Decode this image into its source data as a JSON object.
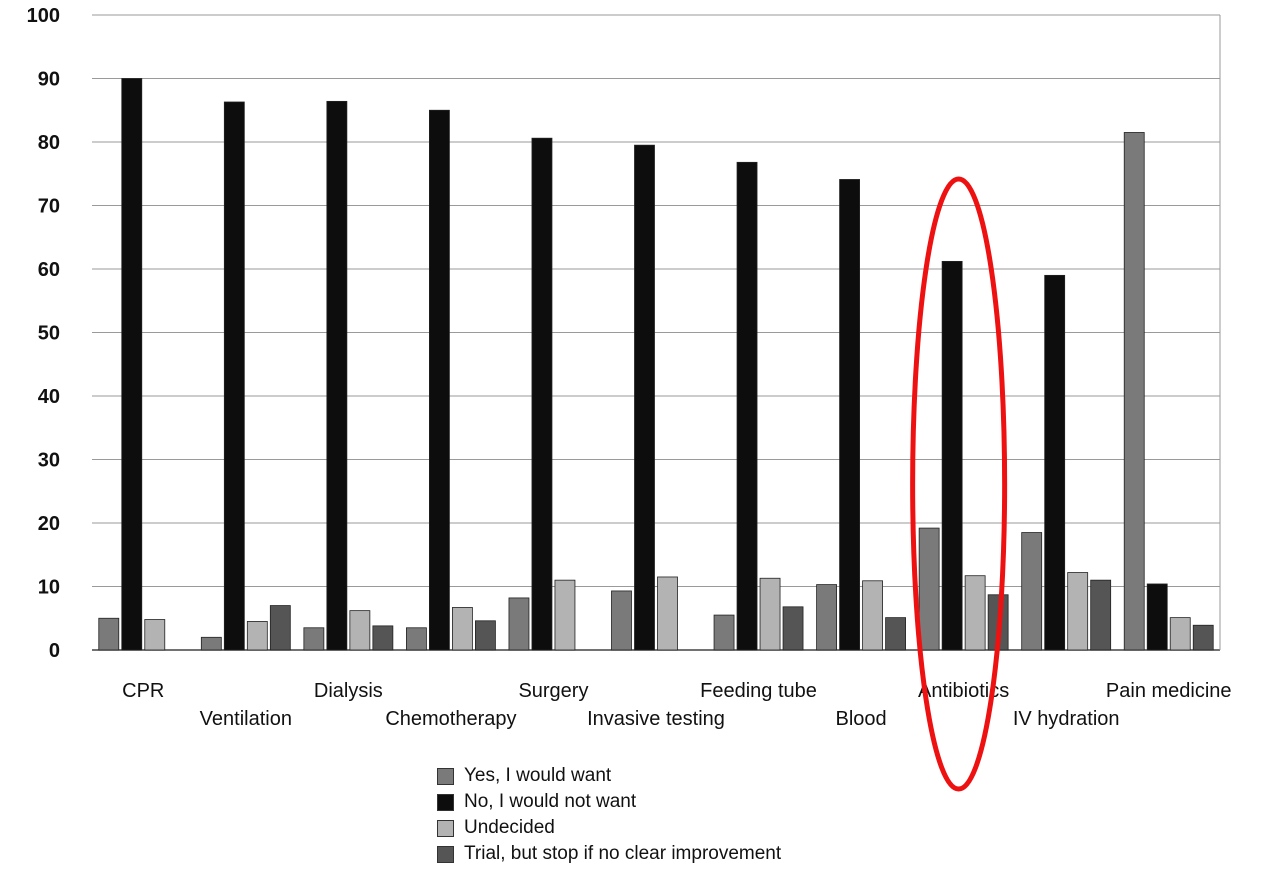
{
  "chart_data": {
    "type": "bar",
    "title": "",
    "xlabel": "",
    "ylabel": "",
    "ylim": [
      0,
      100
    ],
    "yticks": [
      "0",
      "10",
      "20",
      "30",
      "40",
      "50",
      "60",
      "70",
      "80",
      "90",
      "100"
    ],
    "grid": true,
    "legend_position": "bottom",
    "categories": [
      "CPR",
      "Ventilation",
      "Dialysis",
      "Chemotherapy",
      "Surgery",
      "Invasive testing",
      "Feeding tube",
      "Blood",
      "Antibiotics",
      "IV hydration",
      "Pain medicine"
    ],
    "series": [
      {
        "name": "Yes, I would want",
        "color": "#7a7a7a",
        "values": [
          5,
          2,
          3.5,
          3.5,
          8.2,
          9.3,
          5.5,
          10.3,
          19.2,
          18.5,
          81.5
        ]
      },
      {
        "name": "No, I would not want",
        "color": "#0d0d0d",
        "values": [
          90,
          86.3,
          86.4,
          85,
          80.6,
          79.5,
          76.8,
          74.1,
          61.2,
          59,
          10.4
        ]
      },
      {
        "name": "Undecided",
        "color": "#b3b3b3",
        "values": [
          4.8,
          4.5,
          6.2,
          6.7,
          11,
          11.5,
          11.3,
          10.9,
          11.7,
          12.2,
          5.1
        ]
      },
      {
        "name": "Trial, but stop if no clear improvement",
        "color": "#555555",
        "values": [
          0,
          7,
          3.8,
          4.6,
          0,
          0,
          6.8,
          5.1,
          8.7,
          11,
          3.9
        ]
      }
    ],
    "highlight": {
      "category": "Antibiotics",
      "shape": "ellipse",
      "color": "#ee1111"
    }
  }
}
